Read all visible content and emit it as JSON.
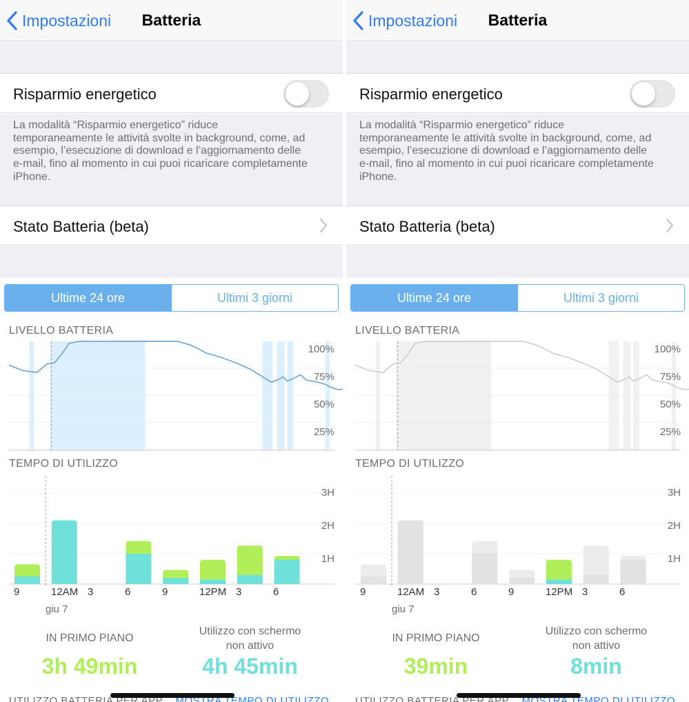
{
  "colors": {
    "accent": "#2f7cf6",
    "segment": "#6ab0ec",
    "green": "#b0ee5a",
    "teal": "#6fe0da",
    "faded": "#e3e3e3"
  },
  "panels": [
    {
      "nav": {
        "back_label": "Impostazioni",
        "title": "Batteria"
      },
      "low_power": {
        "label": "Risparmio energetico",
        "enabled": false,
        "description_lines": [
          "La modalità “Risparmio energetico” riduce",
          "temporaneamente le attività svolte in background, come, ad",
          "esempio, l’esecuzione di download e l’aggiornamento delle",
          "e-mail, fino al momento in cui puoi ricaricare completamente",
          "iPhone."
        ]
      },
      "battery_health": {
        "label": "Stato Batteria (beta)"
      },
      "segments": [
        {
          "label": "Ultime 24 ore",
          "selected": true
        },
        {
          "label": "Ultimi 3 giorni",
          "selected": false
        }
      ],
      "battery_level": {
        "heading": "LIVELLO BATTERIA",
        "y_ticks": [
          "100%",
          "75%",
          "50%",
          "25%"
        ]
      },
      "usage": {
        "heading": "TEMPO DI UTILIZZO",
        "y_ticks": [
          "3H",
          "2H",
          "1H"
        ],
        "x_ticks": [
          "9",
          "12AM",
          "3",
          "6",
          "9",
          "12PM",
          "3",
          "6"
        ],
        "date_label": "giu 7"
      },
      "stats": {
        "foreground_label": "IN PRIMO PIANO",
        "foreground_value": "3h 49min",
        "background_label_1": "Utilizzo con schermo",
        "background_label_2": "non attivo",
        "background_value": "4h 45min"
      },
      "bottom": {
        "text": "UTILIZZO BATTERIA PER APP",
        "link": "MOSTRA TEMPO DI UTILIZZO"
      }
    },
    {
      "nav": {
        "back_label": "Impostazioni",
        "title": "Batteria"
      },
      "low_power": {
        "label": "Risparmio energetico",
        "enabled": false,
        "description_lines": [
          "La modalità “Risparmio energetico” riduce",
          "temporaneamente le attività svolte in background, come, ad",
          "esempio, l’esecuzione di download e l’aggiornamento delle",
          "e-mail, fino al momento in cui puoi ricaricare completamente",
          "iPhone."
        ]
      },
      "battery_health": {
        "label": "Stato Batteria (beta)"
      },
      "segments": [
        {
          "label": "Ultime 24 ore",
          "selected": true
        },
        {
          "label": "Ultimi 3 giorni",
          "selected": false
        }
      ],
      "battery_level": {
        "heading": "LIVELLO BATTERIA",
        "y_ticks": [
          "100%",
          "75%",
          "50%",
          "25%"
        ]
      },
      "usage": {
        "heading": "TEMPO DI UTILIZZO",
        "y_ticks": [
          "3H",
          "2H",
          "1H"
        ],
        "x_ticks": [
          "9",
          "12AM",
          "3",
          "6",
          "9",
          "12PM",
          "3",
          "6"
        ],
        "date_label": "giu 7"
      },
      "stats": {
        "foreground_label": "IN PRIMO PIANO",
        "foreground_value": "39min",
        "background_label_1": "Utilizzo con schermo",
        "background_label_2": "non attivo",
        "background_value": "8min"
      },
      "bottom": {
        "text": "UTILIZZO BATTERIA PER APP",
        "link": "MOSTRA TEMPO DI UTILIZZO"
      }
    }
  ],
  "chart_data": [
    {
      "type": "line",
      "title": "LIVELLO BATTERIA",
      "ylim": [
        0,
        100
      ],
      "y_ticks": [
        "100%",
        "75%",
        "50%",
        "25%"
      ],
      "x_hours": [
        0,
        0.9,
        1.9,
        2.6,
        3.1,
        3.6,
        4.1,
        4.8,
        11.5,
        12.5,
        13.5,
        14.5,
        15.5,
        16.5,
        17.2,
        17.9,
        18.3,
        18.7,
        19.0,
        19.5,
        19.9,
        20.3,
        21.1,
        21.6,
        22.0,
        22.5,
        23.0
      ],
      "battery_pct": [
        78,
        73,
        71,
        79,
        80,
        88,
        98,
        100,
        100,
        96,
        89,
        85,
        80,
        74,
        68,
        62,
        64,
        67,
        63,
        66,
        69,
        64,
        62,
        60,
        57,
        55,
        56
      ],
      "charging_shaded_hours": [
        [
          1.4,
          1.7
        ],
        [
          2.8,
          9.3
        ],
        [
          17.3,
          18.0
        ],
        [
          18.3,
          18.8
        ],
        [
          19.0,
          19.4
        ],
        [
          21.6,
          21.9
        ]
      ]
    },
    {
      "type": "bar",
      "title": "TEMPO DI UTILIZZO",
      "categories": [
        "9",
        "12AM",
        "3",
        "6",
        "9",
        "12PM",
        "3",
        "6"
      ],
      "ylim": [
        0,
        3
      ],
      "y_ticks": [
        "3H",
        "2H",
        "1H"
      ],
      "series": [
        {
          "name": "Utilizzo con schermo non attivo",
          "values": [
            0.25,
            2.1,
            0,
            1.0,
            0.2,
            0.15,
            0.3,
            0.8
          ],
          "color": "#6fe0da"
        },
        {
          "name": "IN PRIMO PIANO",
          "values": [
            0.4,
            0,
            0,
            0.42,
            0.27,
            0.65,
            0.97,
            0.13
          ],
          "color": "#b0ee5a"
        }
      ],
      "highlighted_index_right_panel": 5
    }
  ]
}
